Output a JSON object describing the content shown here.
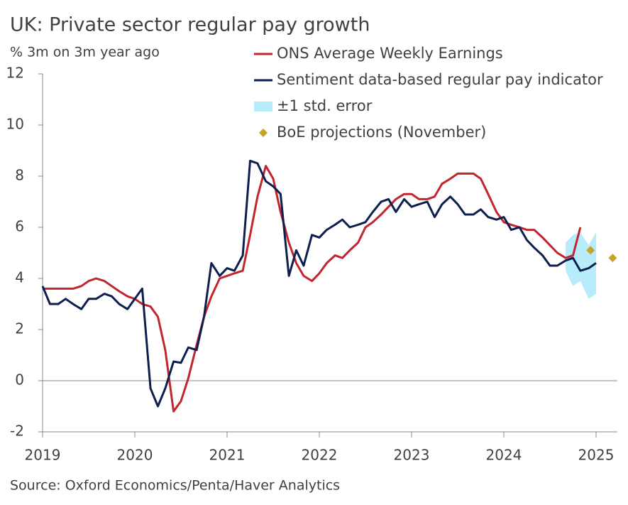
{
  "chart_data": {
    "type": "line",
    "title": "UK: Private sector regular pay growth",
    "subtitle": "% 3m on 3m year ago",
    "source": "Source: Oxford Economics/Penta/Haver Analytics",
    "xlim": [
      2019,
      2025.23
    ],
    "xticks": [
      2019,
      2020,
      2021,
      2022,
      2023,
      2024,
      2025
    ],
    "ylim": [
      -2,
      12
    ],
    "yticks": [
      -2,
      0,
      2,
      4,
      6,
      8,
      10,
      12
    ],
    "series": [
      {
        "name": "ONS Average Weekly Earnings",
        "color": "#c0262d",
        "x": [
          2019.0,
          2019.08,
          2019.17,
          2019.25,
          2019.33,
          2019.42,
          2019.5,
          2019.58,
          2019.67,
          2019.75,
          2019.83,
          2019.92,
          2020.0,
          2020.08,
          2020.17,
          2020.25,
          2020.33,
          2020.42,
          2020.5,
          2020.58,
          2020.67,
          2020.75,
          2020.83,
          2020.92,
          2021.0,
          2021.08,
          2021.17,
          2021.25,
          2021.33,
          2021.42,
          2021.5,
          2021.58,
          2021.67,
          2021.75,
          2021.83,
          2021.92,
          2022.0,
          2022.08,
          2022.17,
          2022.25,
          2022.33,
          2022.42,
          2022.5,
          2022.58,
          2022.67,
          2022.75,
          2022.83,
          2022.92,
          2023.0,
          2023.08,
          2023.17,
          2023.25,
          2023.33,
          2023.42,
          2023.5,
          2023.58,
          2023.67,
          2023.75,
          2023.83,
          2023.92,
          2024.0,
          2024.08,
          2024.17,
          2024.25,
          2024.33,
          2024.42,
          2024.5,
          2024.58,
          2024.67,
          2024.75,
          2024.83
        ],
        "values": [
          3.6,
          3.6,
          3.6,
          3.6,
          3.6,
          3.7,
          3.9,
          4.0,
          3.9,
          3.7,
          3.5,
          3.3,
          3.2,
          3.0,
          2.9,
          2.5,
          1.2,
          -1.2,
          -0.8,
          0.1,
          1.4,
          2.5,
          3.3,
          4.0,
          4.1,
          4.2,
          4.3,
          5.7,
          7.2,
          8.4,
          7.9,
          6.6,
          5.4,
          4.6,
          4.1,
          3.9,
          4.2,
          4.6,
          4.9,
          4.8,
          5.1,
          5.4,
          6.0,
          6.2,
          6.5,
          6.8,
          7.1,
          7.3,
          7.3,
          7.1,
          7.1,
          7.2,
          7.7,
          7.9,
          8.1,
          8.1,
          8.1,
          7.9,
          7.3,
          6.6,
          6.2,
          6.1,
          6.0,
          5.9,
          5.9,
          5.6,
          5.3,
          5.0,
          4.8,
          4.9,
          6.0
        ]
      },
      {
        "name": "Sentiment data-based regular pay indicator",
        "color": "#0d1e4f",
        "x": [
          2019.0,
          2019.08,
          2019.17,
          2019.25,
          2019.33,
          2019.42,
          2019.5,
          2019.58,
          2019.67,
          2019.75,
          2019.83,
          2019.92,
          2020.0,
          2020.08,
          2020.17,
          2020.25,
          2020.33,
          2020.42,
          2020.5,
          2020.58,
          2020.67,
          2020.75,
          2020.83,
          2020.92,
          2021.0,
          2021.08,
          2021.17,
          2021.25,
          2021.33,
          2021.42,
          2021.5,
          2021.58,
          2021.67,
          2021.75,
          2021.83,
          2021.92,
          2022.0,
          2022.08,
          2022.17,
          2022.25,
          2022.33,
          2022.42,
          2022.5,
          2022.58,
          2022.67,
          2022.75,
          2022.83,
          2022.92,
          2023.0,
          2023.08,
          2023.17,
          2023.25,
          2023.33,
          2023.42,
          2023.5,
          2023.58,
          2023.67,
          2023.75,
          2023.83,
          2023.92,
          2024.0,
          2024.08,
          2024.17,
          2024.25,
          2024.33,
          2024.42,
          2024.5,
          2024.58,
          2024.67,
          2024.75,
          2024.83,
          2024.92,
          2025.0
        ],
        "values": [
          3.7,
          3.0,
          3.0,
          3.2,
          3.0,
          2.8,
          3.2,
          3.2,
          3.4,
          3.3,
          3.0,
          2.8,
          3.2,
          3.6,
          -0.3,
          -1.0,
          -0.3,
          0.75,
          0.7,
          1.3,
          1.2,
          2.5,
          4.6,
          4.1,
          4.4,
          4.3,
          4.9,
          8.6,
          8.5,
          7.8,
          7.6,
          7.3,
          4.1,
          5.1,
          4.5,
          5.7,
          5.6,
          5.9,
          6.1,
          6.3,
          6.0,
          6.1,
          6.2,
          6.6,
          7.0,
          7.1,
          6.6,
          7.1,
          6.8,
          6.9,
          7.0,
          6.4,
          6.9,
          7.2,
          6.9,
          6.5,
          6.5,
          6.7,
          6.4,
          6.3,
          6.4,
          5.9,
          6.0,
          5.5,
          5.2,
          4.9,
          4.5,
          4.5,
          4.7,
          4.8,
          4.3,
          4.4,
          4.6
        ]
      }
    ],
    "band": {
      "name": "±1 std. error",
      "color": "#b7ecfa",
      "x": [
        2024.67,
        2024.75,
        2024.83,
        2024.92,
        2025.0
      ],
      "lower": [
        4.3,
        3.7,
        3.9,
        3.2,
        3.4
      ],
      "upper": [
        5.4,
        5.7,
        5.8,
        5.3,
        5.8
      ]
    },
    "points": {
      "name": "BoE projections (November)",
      "color": "#c9a227",
      "x": [
        2024.94,
        2025.18
      ],
      "values": [
        5.1,
        4.8
      ]
    }
  }
}
